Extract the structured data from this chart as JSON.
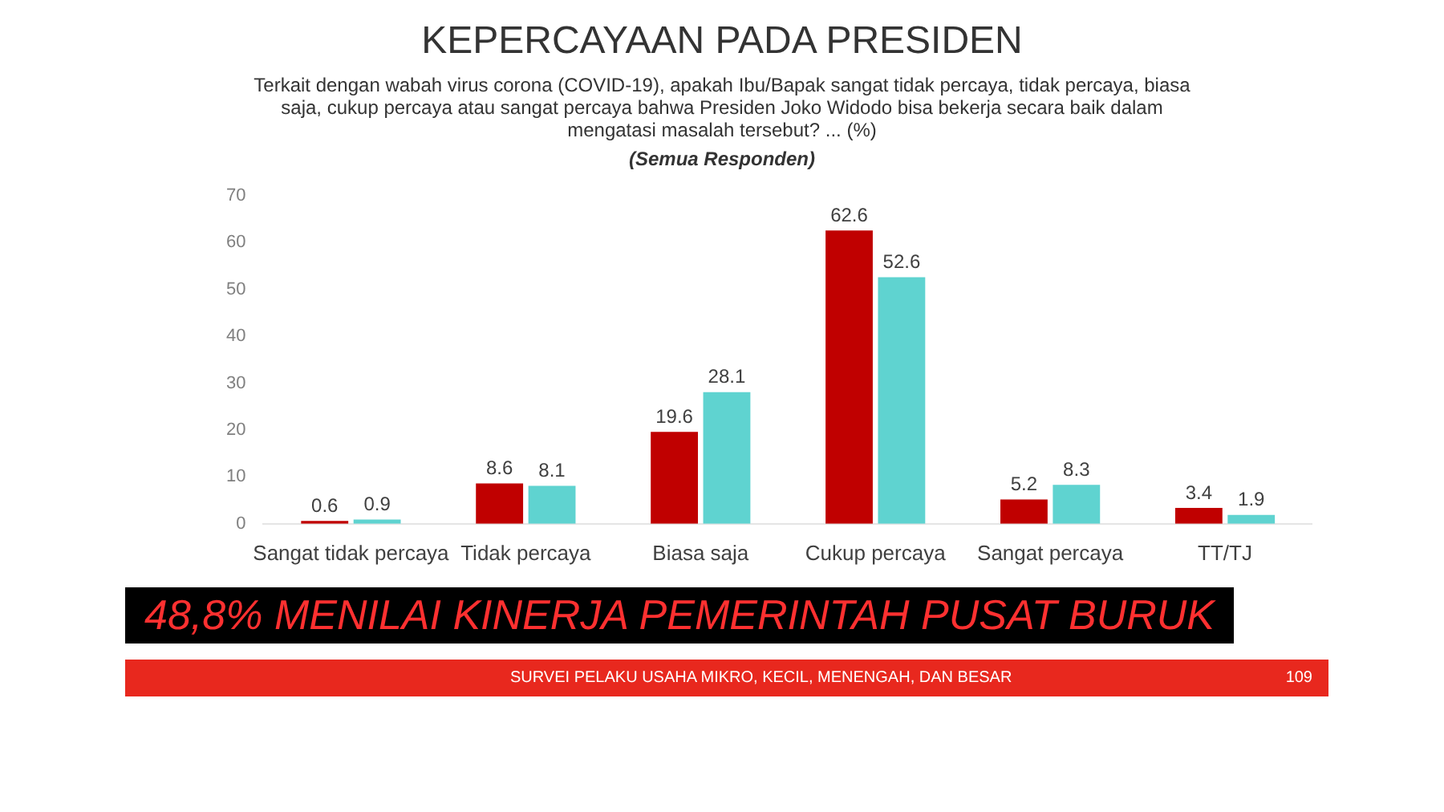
{
  "chart_data": {
    "type": "bar",
    "title": "KEPERCAYAAN PADA PRESIDEN",
    "subtitle": "Terkait dengan wabah virus corona (COVID-19), apakah Ibu/Bapak sangat tidak percaya, tidak percaya, biasa saja, cukup percaya atau sangat percaya bahwa Presiden Joko Widodo bisa bekerja secara baik dalam mengatasi masalah tersebut? ... (%)",
    "categories": [
      "Sangat tidak percaya",
      "Tidak percaya",
      "Biasa saja",
      "Cukup percaya",
      "Sangat percaya",
      "TT/TJ"
    ],
    "series": [
      {
        "color": "#c00000",
        "values": [
          0.6,
          8.6,
          19.6,
          62.6,
          5.2,
          3.4
        ]
      },
      {
        "color": "#5fd3d0",
        "values": [
          0.9,
          8.1,
          28.1,
          52.6,
          8.3,
          1.9
        ]
      }
    ],
    "ylim": [
      0,
      70
    ],
    "yticks": [
      0,
      10,
      20,
      30,
      40,
      50,
      60,
      70
    ],
    "grid": false,
    "legend": false,
    "data_labels": true,
    "annotations": [
      "(Semua Responden)",
      "48,8% MENILAI KINERJA PEMERINTAH PUSAT BURUK",
      "SURVEI PELAKU USAHA MIKRO, KECIL, MENENGAH, DAN BESAR",
      "109"
    ]
  }
}
